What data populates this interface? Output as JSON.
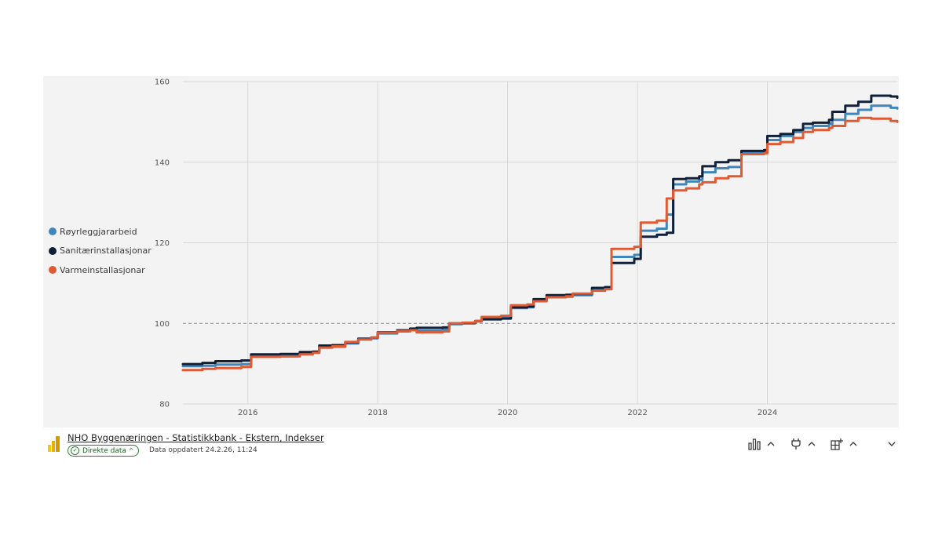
{
  "chart_data": {
    "type": "line",
    "title": "",
    "xlabel": "",
    "ylabel": "",
    "x_ticks": [
      "2016",
      "2018",
      "2020",
      "2022",
      "2024"
    ],
    "y_ticks": [
      "80",
      "100",
      "120",
      "140",
      "160"
    ],
    "ylim": [
      80,
      160
    ],
    "xlim": [
      2015.0,
      2026.0
    ],
    "reference_line": 100,
    "grid": true,
    "legend_position": "left",
    "series": [
      {
        "name": "Røyrleggjararbeid",
        "color": "#3f87bb",
        "points": [
          [
            2015.0,
            89.4
          ],
          [
            2015.3,
            89.5
          ],
          [
            2015.5,
            89.8
          ],
          [
            2015.9,
            89.9
          ],
          [
            2016.05,
            91.8
          ],
          [
            2016.5,
            92.0
          ],
          [
            2016.8,
            92.5
          ],
          [
            2017.0,
            92.8
          ],
          [
            2017.1,
            94.0
          ],
          [
            2017.3,
            94.2
          ],
          [
            2017.5,
            95.0
          ],
          [
            2017.7,
            96.0
          ],
          [
            2017.9,
            96.3
          ],
          [
            2018.0,
            97.5
          ],
          [
            2018.3,
            98.0
          ],
          [
            2018.5,
            98.5
          ],
          [
            2018.6,
            98.2
          ],
          [
            2019.0,
            98.4
          ],
          [
            2019.1,
            99.8
          ],
          [
            2019.3,
            100.0
          ],
          [
            2019.5,
            100.5
          ],
          [
            2019.6,
            101.2
          ],
          [
            2019.9,
            101.5
          ],
          [
            2020.05,
            103.8
          ],
          [
            2020.3,
            104.0
          ],
          [
            2020.4,
            105.5
          ],
          [
            2020.6,
            106.5
          ],
          [
            2020.9,
            106.6
          ],
          [
            2021.0,
            107.0
          ],
          [
            2021.3,
            108.3
          ],
          [
            2021.5,
            108.5
          ],
          [
            2021.6,
            116.5
          ],
          [
            2021.95,
            117.0
          ],
          [
            2022.05,
            123.0
          ],
          [
            2022.3,
            123.5
          ],
          [
            2022.45,
            127.0
          ],
          [
            2022.55,
            134.5
          ],
          [
            2022.75,
            135.2
          ],
          [
            2022.95,
            135.6
          ],
          [
            2023.0,
            137.5
          ],
          [
            2023.2,
            138.5
          ],
          [
            2023.4,
            138.8
          ],
          [
            2023.6,
            142.5
          ],
          [
            2023.95,
            142.8
          ],
          [
            2024.0,
            145.5
          ],
          [
            2024.2,
            146.5
          ],
          [
            2024.4,
            147.5
          ],
          [
            2024.55,
            148.5
          ],
          [
            2024.7,
            149.0
          ],
          [
            2024.95,
            149.5
          ],
          [
            2025.0,
            150.5
          ],
          [
            2025.2,
            152.0
          ],
          [
            2025.4,
            153.0
          ],
          [
            2025.6,
            154.0
          ],
          [
            2025.9,
            153.5
          ],
          [
            2026.0,
            153.3
          ]
        ]
      },
      {
        "name": "Sanitærinstallasjonar",
        "color": "#112039",
        "points": [
          [
            2015.0,
            89.9
          ],
          [
            2015.3,
            90.2
          ],
          [
            2015.5,
            90.6
          ],
          [
            2015.9,
            90.8
          ],
          [
            2016.05,
            92.3
          ],
          [
            2016.5,
            92.4
          ],
          [
            2016.8,
            92.9
          ],
          [
            2017.0,
            93.0
          ],
          [
            2017.1,
            94.5
          ],
          [
            2017.3,
            94.6
          ],
          [
            2017.5,
            95.3
          ],
          [
            2017.7,
            96.2
          ],
          [
            2017.9,
            96.5
          ],
          [
            2018.0,
            97.8
          ],
          [
            2018.3,
            98.3
          ],
          [
            2018.5,
            98.7
          ],
          [
            2018.6,
            98.9
          ],
          [
            2019.0,
            99.0
          ],
          [
            2019.1,
            100.0
          ],
          [
            2019.3,
            100.1
          ],
          [
            2019.5,
            100.6
          ],
          [
            2019.6,
            101.0
          ],
          [
            2019.9,
            101.2
          ],
          [
            2020.05,
            104.0
          ],
          [
            2020.3,
            104.2
          ],
          [
            2020.4,
            106.0
          ],
          [
            2020.6,
            107.0
          ],
          [
            2020.9,
            107.1
          ],
          [
            2021.0,
            107.3
          ],
          [
            2021.3,
            108.8
          ],
          [
            2021.5,
            109.0
          ],
          [
            2021.6,
            115.0
          ],
          [
            2021.95,
            116.0
          ],
          [
            2022.05,
            121.5
          ],
          [
            2022.3,
            122.0
          ],
          [
            2022.45,
            122.5
          ],
          [
            2022.55,
            135.8
          ],
          [
            2022.75,
            136.0
          ],
          [
            2022.95,
            136.5
          ],
          [
            2023.0,
            139.0
          ],
          [
            2023.2,
            140.0
          ],
          [
            2023.4,
            140.5
          ],
          [
            2023.6,
            142.8
          ],
          [
            2023.95,
            143.0
          ],
          [
            2024.0,
            146.5
          ],
          [
            2024.2,
            147.0
          ],
          [
            2024.4,
            148.0
          ],
          [
            2024.55,
            149.5
          ],
          [
            2024.7,
            149.8
          ],
          [
            2024.95,
            150.5
          ],
          [
            2025.0,
            152.5
          ],
          [
            2025.2,
            154.0
          ],
          [
            2025.4,
            155.0
          ],
          [
            2025.6,
            156.5
          ],
          [
            2025.9,
            156.3
          ],
          [
            2026.0,
            156.0
          ]
        ]
      },
      {
        "name": "Varmeinstallasjonar",
        "color": "#df5b34",
        "points": [
          [
            2015.0,
            88.4
          ],
          [
            2015.3,
            88.7
          ],
          [
            2015.5,
            88.9
          ],
          [
            2015.9,
            89.2
          ],
          [
            2016.05,
            91.7
          ],
          [
            2016.5,
            91.8
          ],
          [
            2016.8,
            92.3
          ],
          [
            2017.0,
            92.7
          ],
          [
            2017.1,
            94.0
          ],
          [
            2017.3,
            94.3
          ],
          [
            2017.5,
            95.4
          ],
          [
            2017.7,
            96.0
          ],
          [
            2017.9,
            96.5
          ],
          [
            2018.0,
            97.7
          ],
          [
            2018.3,
            98.1
          ],
          [
            2018.5,
            98.3
          ],
          [
            2018.6,
            97.8
          ],
          [
            2019.0,
            98.0
          ],
          [
            2019.1,
            100.0
          ],
          [
            2019.3,
            100.2
          ],
          [
            2019.5,
            100.6
          ],
          [
            2019.6,
            101.6
          ],
          [
            2019.9,
            101.9
          ],
          [
            2020.05,
            104.5
          ],
          [
            2020.3,
            104.7
          ],
          [
            2020.4,
            105.5
          ],
          [
            2020.6,
            106.5
          ],
          [
            2020.9,
            106.7
          ],
          [
            2021.0,
            107.4
          ],
          [
            2021.3,
            108.1
          ],
          [
            2021.5,
            108.5
          ],
          [
            2021.6,
            118.5
          ],
          [
            2021.95,
            119.0
          ],
          [
            2022.05,
            125.0
          ],
          [
            2022.3,
            125.5
          ],
          [
            2022.45,
            131.0
          ],
          [
            2022.55,
            133.0
          ],
          [
            2022.75,
            133.5
          ],
          [
            2022.95,
            134.5
          ],
          [
            2023.0,
            135.0
          ],
          [
            2023.2,
            136.0
          ],
          [
            2023.4,
            136.5
          ],
          [
            2023.6,
            142.0
          ],
          [
            2023.95,
            142.2
          ],
          [
            2024.0,
            144.5
          ],
          [
            2024.2,
            145.0
          ],
          [
            2024.4,
            146.0
          ],
          [
            2024.55,
            147.5
          ],
          [
            2024.7,
            148.0
          ],
          [
            2024.95,
            148.5
          ],
          [
            2025.0,
            149.0
          ],
          [
            2025.2,
            150.2
          ],
          [
            2025.4,
            151.0
          ],
          [
            2025.6,
            150.8
          ],
          [
            2025.9,
            150.2
          ],
          [
            2026.0,
            150.0
          ]
        ]
      }
    ]
  },
  "footer": {
    "source_link": "NHO Byggenæringen - Statistikkbank - Ekstern, Indekser",
    "badge_label": "Direkte data",
    "updated_text": "Data oppdatert 24.2.26, 11:24"
  },
  "icons": {
    "logo": "powerbi-logo-icon",
    "visuals": "chart-bars-icon",
    "connections": "plug-icon",
    "add": "add-visual-icon",
    "expand": "chevron-down-icon"
  },
  "colors": {
    "panel_bg": "#f3f3f3",
    "grid": "#d7d7d7",
    "reference": "#8c8c8c",
    "badge": "#2e7d32"
  }
}
